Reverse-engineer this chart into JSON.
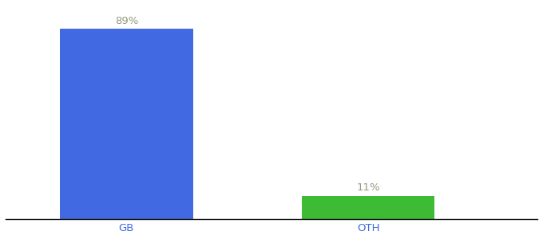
{
  "categories": [
    "GB",
    "OTH"
  ],
  "values": [
    89,
    11
  ],
  "bar_colors": [
    "#4169e1",
    "#3dbb35"
  ],
  "label_texts": [
    "89%",
    "11%"
  ],
  "label_color": "#999980",
  "xlabel": "",
  "ylabel": "",
  "ylim": [
    0,
    100
  ],
  "background_color": "#ffffff",
  "tick_color": "#4169e1",
  "bar_width": 0.55,
  "label_fontsize": 9.5,
  "tick_fontsize": 9.5
}
